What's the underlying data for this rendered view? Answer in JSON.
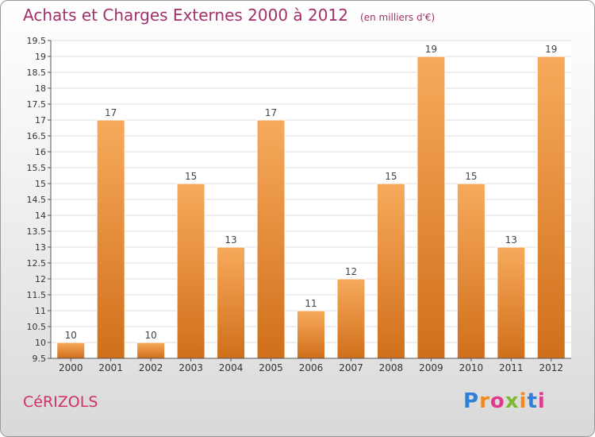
{
  "header": {
    "title": "Achats et Charges Externes 2000 à 2012",
    "subtitle": "(en milliers d'€)"
  },
  "footer": {
    "commune": "CéRIZOLS",
    "logo": "Proxiti"
  },
  "colors": {
    "bar_light": "#f7a95a",
    "bar_dark": "#d2721d",
    "title": "#a0306a",
    "commune": "#d0306a"
  },
  "chart_data": {
    "type": "bar",
    "categories": [
      "2000",
      "2001",
      "2002",
      "2003",
      "2004",
      "2005",
      "2006",
      "2007",
      "2008",
      "2009",
      "2010",
      "2011",
      "2012"
    ],
    "values": [
      10,
      17,
      10,
      15,
      13,
      17,
      11,
      12,
      15,
      19,
      15,
      13,
      19
    ],
    "ylim": [
      9.5,
      19.5
    ],
    "yticks": [
      "9.5",
      "10",
      "10.5",
      "11",
      "11.5",
      "12",
      "12.5",
      "13",
      "13.5",
      "14",
      "14.5",
      "15",
      "15.5",
      "16",
      "16.5",
      "17",
      "17.5",
      "18",
      "18.5",
      "19",
      "19.5"
    ],
    "grid": true
  }
}
